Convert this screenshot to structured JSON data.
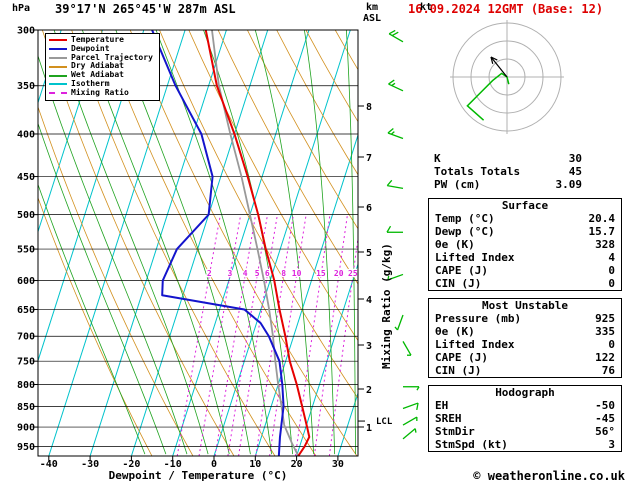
{
  "header": {
    "pressure_unit": "hPa",
    "title": "39°17'N 265°45'W 287m ASL",
    "datetime": "16.09.2024 12GMT (Base: 12)",
    "km_label": "km",
    "asl_label": "ASL"
  },
  "hodograph": {
    "unit_label": "kt"
  },
  "axes": {
    "pressure_ticks": [
      300,
      350,
      400,
      450,
      500,
      550,
      600,
      650,
      700,
      750,
      800,
      850,
      900,
      950
    ],
    "temp_ticks": [
      -40,
      -30,
      -20,
      -10,
      0,
      10,
      20,
      30
    ],
    "km_ticks": [
      1,
      2,
      3,
      4,
      5,
      6,
      7,
      8
    ],
    "xlabel": "Dewpoint / Temperature (°C)",
    "mixing_ratio_axis_label": "Mixing Ratio (g/kg)",
    "lcl_label": "LCL"
  },
  "legend": [
    {
      "label": "Temperature",
      "color": "#e60000",
      "style": "solid"
    },
    {
      "label": "Dewpoint",
      "color": "#1414cc",
      "style": "solid"
    },
    {
      "label": "Parcel Trajectory",
      "color": "#999999",
      "style": "solid"
    },
    {
      "label": "Dry Adiabat",
      "color": "#d2901e",
      "style": "solid"
    },
    {
      "label": "Wet Adiabat",
      "color": "#1fa31f",
      "style": "solid"
    },
    {
      "label": "Isotherm",
      "color": "#00c3cc",
      "style": "solid"
    },
    {
      "label": "Mixing Ratio",
      "color": "#dd22dd",
      "style": "dashed"
    }
  ],
  "colors": {
    "temperature": "#e60000",
    "dewpoint": "#1414cc",
    "parcel": "#999999",
    "dry_adiabat": "#d2901e",
    "wet_adiabat": "#1fa31f",
    "isotherm": "#00c3cc",
    "mixing_ratio": "#dd22dd",
    "grid": "#000000",
    "wind_barb": "#00b800",
    "datetime": "#dd0000"
  },
  "chart_data": {
    "type": "skewt-sounding",
    "title": "39°17'N 265°45'W 287m ASL",
    "pressure_axis_hpa": [
      300,
      350,
      400,
      450,
      500,
      550,
      600,
      650,
      700,
      750,
      800,
      850,
      900,
      950
    ],
    "temp_axis_c": [
      -40,
      -30,
      -20,
      -10,
      0,
      10,
      20,
      30
    ],
    "km_axis": [
      1,
      2,
      3,
      4,
      5,
      6,
      7,
      8
    ],
    "mixing_ratio_lines_gkg": [
      2,
      3,
      4,
      5,
      6,
      8,
      10,
      15,
      20,
      25
    ],
    "temperature_profile_p_c": [
      [
        975,
        20.4
      ],
      [
        950,
        21.2
      ],
      [
        925,
        21.6
      ],
      [
        900,
        20.3
      ],
      [
        850,
        17.5
      ],
      [
        800,
        14.5
      ],
      [
        750,
        11
      ],
      [
        700,
        8
      ],
      [
        650,
        4.5
      ],
      [
        600,
        1
      ],
      [
        550,
        -3.5
      ],
      [
        500,
        -8
      ],
      [
        450,
        -13.5
      ],
      [
        400,
        -20
      ],
      [
        350,
        -28
      ],
      [
        300,
        -35
      ]
    ],
    "dewpoint_profile_p_c": [
      [
        975,
        15.7
      ],
      [
        925,
        14.5
      ],
      [
        850,
        13
      ],
      [
        800,
        11
      ],
      [
        750,
        8.5
      ],
      [
        700,
        4
      ],
      [
        675,
        1
      ],
      [
        650,
        -4
      ],
      [
        625,
        -25
      ],
      [
        600,
        -26
      ],
      [
        550,
        -25
      ],
      [
        500,
        -20
      ],
      [
        450,
        -22
      ],
      [
        400,
        -28
      ],
      [
        350,
        -38
      ],
      [
        300,
        -48
      ]
    ],
    "parcel_profile_p_c": [
      [
        975,
        20.4
      ],
      [
        940,
        17.8
      ],
      [
        895,
        14.6
      ],
      [
        850,
        12.5
      ],
      [
        800,
        10
      ],
      [
        750,
        7.5
      ],
      [
        700,
        5
      ],
      [
        650,
        2
      ],
      [
        600,
        -1.5
      ],
      [
        550,
        -5.5
      ],
      [
        500,
        -10
      ],
      [
        450,
        -15
      ],
      [
        400,
        -21
      ],
      [
        350,
        -27.5
      ],
      [
        300,
        -33.5
      ]
    ],
    "lcl_pressure_hpa": 895,
    "wind_barbs": [
      {
        "p": 310,
        "dir": 300,
        "spd": 20
      },
      {
        "p": 355,
        "dir": 295,
        "spd": 15
      },
      {
        "p": 405,
        "dir": 290,
        "spd": 15
      },
      {
        "p": 465,
        "dir": 280,
        "spd": 10
      },
      {
        "p": 525,
        "dir": 270,
        "spd": 10
      },
      {
        "p": 590,
        "dir": 250,
        "spd": 5
      },
      {
        "p": 660,
        "dir": 200,
        "spd": 5
      },
      {
        "p": 710,
        "dir": 150,
        "spd": 5
      },
      {
        "p": 805,
        "dir": 90,
        "spd": 5
      },
      {
        "p": 855,
        "dir": 70,
        "spd": 10
      },
      {
        "p": 895,
        "dir": 60,
        "spd": 5
      },
      {
        "p": 930,
        "dir": 50,
        "spd": 5
      }
    ],
    "hodograph_trace_uv_kt": [
      [
        1,
        -4
      ],
      [
        0,
        0
      ],
      [
        -3,
        2
      ],
      [
        -8,
        -2
      ],
      [
        -14,
        -8
      ],
      [
        -22,
        -16
      ],
      [
        -13,
        -24
      ]
    ],
    "storm_motion": {
      "dir_deg": 56,
      "spd_kt": 3
    }
  },
  "panel": {
    "indices": [
      {
        "label": "K",
        "value": "30"
      },
      {
        "label": "Totals Totals",
        "value": "45"
      },
      {
        "label": "PW (cm)",
        "value": "3.09"
      }
    ],
    "sections": [
      {
        "title": "Surface",
        "rows": [
          {
            "label": "Temp (°C)",
            "value": "20.4"
          },
          {
            "label": "Dewp (°C)",
            "value": "15.7"
          },
          {
            "label": "θe (K)",
            "value": "328"
          },
          {
            "label": "Lifted Index",
            "value": "4"
          },
          {
            "label": "CAPE (J)",
            "value": "0"
          },
          {
            "label": "CIN (J)",
            "value": "0"
          }
        ]
      },
      {
        "title": "Most Unstable",
        "rows": [
          {
            "label": "Pressure (mb)",
            "value": "925"
          },
          {
            "label": "θe (K)",
            "value": "335"
          },
          {
            "label": "Lifted Index",
            "value": "0"
          },
          {
            "label": "CAPE (J)",
            "value": "122"
          },
          {
            "label": "CIN (J)",
            "value": "76"
          }
        ]
      },
      {
        "title": "Hodograph",
        "rows": [
          {
            "label": "EH",
            "value": "-50"
          },
          {
            "label": "SREH",
            "value": "-45"
          },
          {
            "label": "StmDir",
            "value": "56°"
          },
          {
            "label": "StmSpd (kt)",
            "value": "3"
          }
        ]
      }
    ]
  },
  "footer": {
    "copyright": "© weatheronline.co.uk"
  }
}
